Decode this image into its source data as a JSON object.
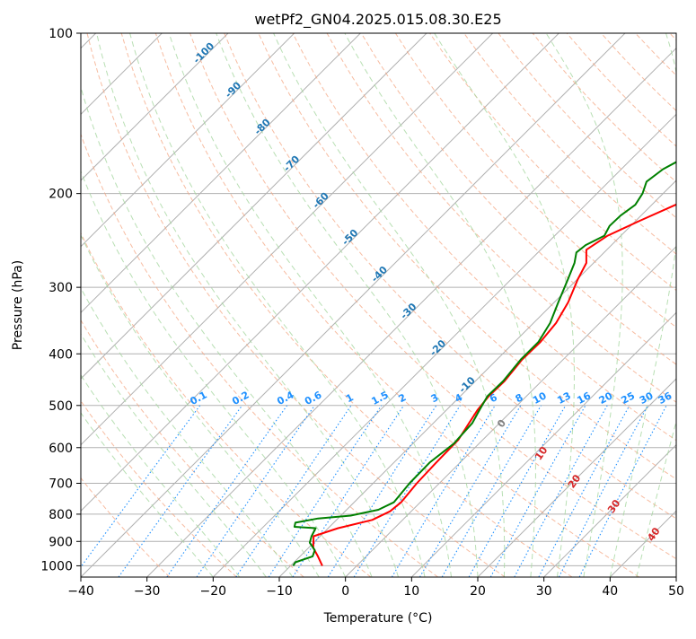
{
  "chart_data": {
    "type": "line",
    "title": "wetPf2_GN04.2025.015.08.30.E25",
    "xlabel": "Temperature (°C)",
    "ylabel": "Pressure (hPa)",
    "xlim": [
      -40,
      50
    ],
    "ylim": [
      1050,
      100
    ],
    "y_scale": "log",
    "grid": true,
    "x_ticks": [
      -40,
      -30,
      -20,
      -10,
      0,
      10,
      20,
      30,
      40,
      50
    ],
    "x_tick_labels": [
      "−40",
      "−30",
      "−20",
      "−10",
      "0",
      "10",
      "20",
      "30",
      "40",
      "50"
    ],
    "y_ticks": [
      100,
      200,
      300,
      400,
      500,
      600,
      700,
      800,
      900,
      1000
    ],
    "y_tick_labels": [
      "100",
      "200",
      "300",
      "400",
      "500",
      "600",
      "700",
      "800",
      "900",
      "1000"
    ],
    "isotherm_labels": [
      "-100",
      "-90",
      "-80",
      "-70",
      "-60",
      "-50",
      "-40",
      "-30",
      "-20",
      "-10"
    ],
    "mixing_ratio_labels": [
      "0.1",
      "0.2",
      "0.4",
      "0.6",
      "1",
      "1.5",
      "2",
      "3",
      "4",
      "6",
      "8",
      "10",
      "13",
      "16",
      "20",
      "25",
      "30",
      "36"
    ],
    "moist_adiabat_labels": [
      "0",
      "10",
      "20",
      "30",
      "40"
    ],
    "colors": {
      "temperature": "#ff0000",
      "dewpoint": "#008000",
      "isotherm_label": "#1f77b4",
      "mixing_ratio": "#1e90ff",
      "dry_adiabat": "#f4a582",
      "moist_adiabat": "#a6d7a0",
      "moist_label": "#d62728"
    },
    "series": [
      {
        "key": "temperature",
        "points": [
          [
            -5.2,
            1000
          ],
          [
            -7.3,
            960
          ],
          [
            -9.3,
            925
          ],
          [
            -11.0,
            880
          ],
          [
            -8.5,
            850
          ],
          [
            -4.6,
            820
          ],
          [
            -3.2,
            790
          ],
          [
            -2.9,
            760
          ],
          [
            -3.4,
            700
          ],
          [
            -3.6,
            640
          ],
          [
            -3.7,
            580
          ],
          [
            -4.6,
            540
          ],
          [
            -5.3,
            510
          ],
          [
            -5.7,
            480
          ],
          [
            -5.6,
            450
          ],
          [
            -6.2,
            410
          ],
          [
            -6.1,
            380
          ],
          [
            -6.6,
            350
          ],
          [
            -7.9,
            320
          ],
          [
            -9.9,
            290
          ],
          [
            -11.1,
            270
          ],
          [
            -13.1,
            255
          ],
          [
            -12.0,
            240
          ],
          [
            -9.4,
            225
          ],
          [
            -6.4,
            210
          ],
          [
            -3.8,
            200
          ],
          [
            -1.6,
            192
          ],
          [
            2.7,
            175
          ],
          [
            5.0,
            160
          ],
          [
            6.3,
            150
          ],
          [
            6.7,
            140
          ],
          [
            7.2,
            130
          ],
          [
            8.2,
            120
          ],
          [
            10.3,
            110
          ],
          [
            12.9,
            100
          ]
        ]
      },
      {
        "key": "dewpoint",
        "points": [
          [
            -9.6,
            1000
          ],
          [
            -9.8,
            985
          ],
          [
            -8.1,
            960
          ],
          [
            -8.7,
            935
          ],
          [
            -10.6,
            905
          ],
          [
            -11.3,
            880
          ],
          [
            -11.9,
            850
          ],
          [
            -15.3,
            845
          ],
          [
            -15.8,
            830
          ],
          [
            -13.0,
            815
          ],
          [
            -8.5,
            805
          ],
          [
            -5.2,
            785
          ],
          [
            -4.0,
            760
          ],
          [
            -4.5,
            700
          ],
          [
            -4.6,
            640
          ],
          [
            -3.8,
            590
          ],
          [
            -4.1,
            540
          ],
          [
            -5.0,
            510
          ],
          [
            -5.9,
            480
          ],
          [
            -5.8,
            450
          ],
          [
            -6.4,
            410
          ],
          [
            -6.4,
            380
          ],
          [
            -7.5,
            350
          ],
          [
            -9.4,
            320
          ],
          [
            -11.4,
            290
          ],
          [
            -12.9,
            270
          ],
          [
            -14.2,
            258
          ],
          [
            -13.9,
            250
          ],
          [
            -12.5,
            240
          ],
          [
            -13.2,
            230
          ],
          [
            -13.1,
            220
          ],
          [
            -12.5,
            210
          ],
          [
            -13.1,
            200
          ],
          [
            -14.3,
            190
          ],
          [
            -13.7,
            180
          ],
          [
            -12.0,
            170
          ],
          [
            -9.8,
            160
          ],
          [
            -8.0,
            150
          ],
          [
            -5.5,
            140
          ],
          [
            -4.1,
            130
          ],
          [
            -2.5,
            120
          ],
          [
            -1.5,
            110
          ],
          [
            0.0,
            100
          ]
        ]
      }
    ]
  }
}
